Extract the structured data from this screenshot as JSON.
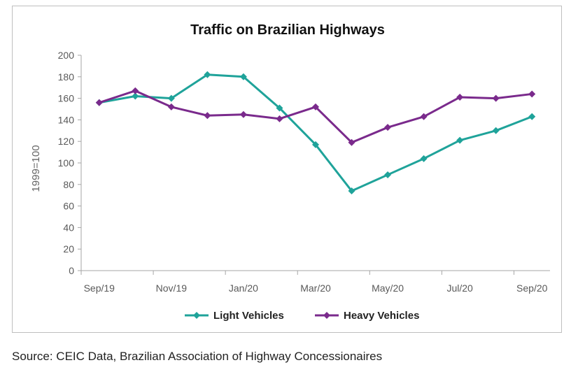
{
  "chart_data": {
    "type": "line",
    "title": "Traffic on Brazilian Highways",
    "xlabel": "",
    "ylabel": "1999=100",
    "ylim": [
      0,
      200
    ],
    "yticks": [
      0,
      20,
      40,
      60,
      80,
      100,
      120,
      140,
      160,
      180,
      200
    ],
    "x": [
      "Sep/19",
      "Oct/19",
      "Nov/19",
      "Dec/19",
      "Jan/20",
      "Feb/20",
      "Mar/20",
      "Apr/20",
      "May/20",
      "Jun/20",
      "Jul/20",
      "Aug/20",
      "Sep/20"
    ],
    "xtick_labels": [
      "Sep/19",
      "Nov/19",
      "Jan/20",
      "Mar/20",
      "May/20",
      "Jul/20",
      "Sep/20"
    ],
    "grid": false,
    "legend_position": "bottom",
    "series": [
      {
        "name": "Light Vehicles",
        "color": "#1fa39a",
        "values": [
          156,
          162,
          160,
          182,
          180,
          151,
          117,
          74,
          89,
          104,
          121,
          130,
          143
        ]
      },
      {
        "name": "Heavy Vehicles",
        "color": "#7a2a8c",
        "values": [
          156,
          167,
          152,
          144,
          145,
          141,
          152,
          119,
          133,
          143,
          161,
          160,
          164
        ]
      }
    ]
  },
  "source": "Source: CEIC Data, Brazilian Association of Highway Concessionaires"
}
